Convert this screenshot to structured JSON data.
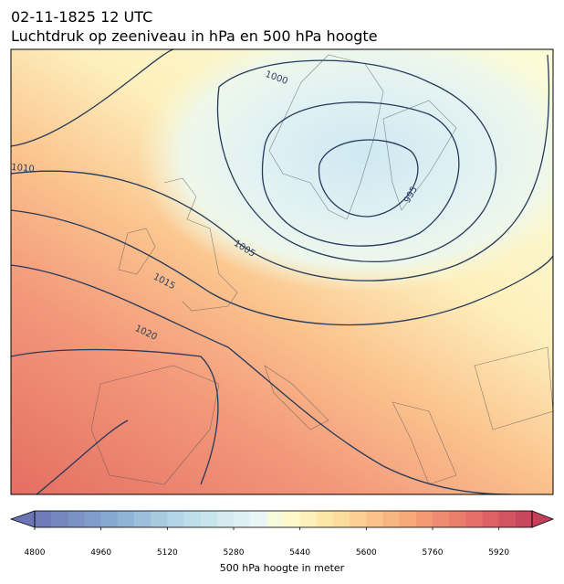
{
  "title_lines": [
    "02-11-1825 12 UTC",
    "Luchtdruk op zeeniveau in hPa en 500 hPa hoogte"
  ],
  "contour_labels": [
    "1000",
    "1010",
    "1005",
    "1015",
    "1020",
    "995"
  ],
  "colorbar": {
    "min": 4800,
    "max": 6000,
    "step": 40,
    "extend": "both",
    "ticks": [
      4800,
      4960,
      5120,
      5280,
      5440,
      5600,
      5760,
      5920
    ],
    "label": "500 hPa hoogte in meter"
  }
}
